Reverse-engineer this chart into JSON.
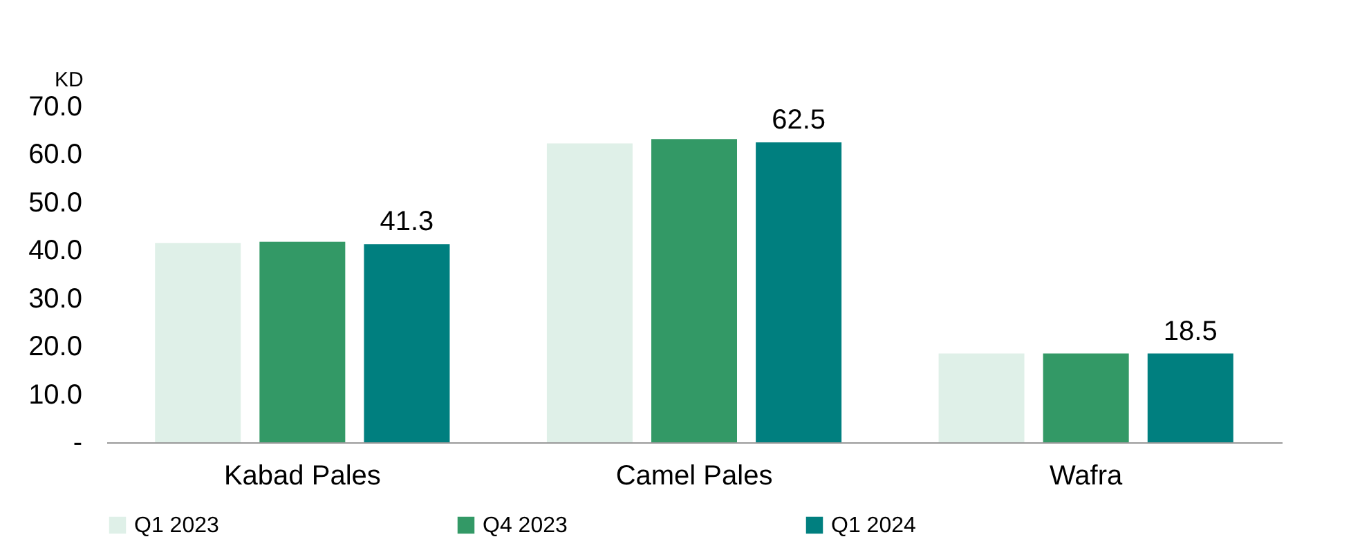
{
  "chart_data": {
    "type": "bar",
    "ylabel": "KD",
    "categories": [
      "Kabad Pales",
      "Camel Pales",
      "Wafra"
    ],
    "series": [
      {
        "name": "Q1 2023",
        "color": "#dff0e8",
        "values": [
          41.5,
          62.3,
          18.5
        ]
      },
      {
        "name": "Q4 2023",
        "color": "#339966",
        "values": [
          41.8,
          63.2,
          18.5
        ]
      },
      {
        "name": "Q1 2024",
        "color": "#007f7f",
        "values": [
          41.3,
          62.5,
          18.5
        ],
        "value_labels": [
          "41.3",
          "62.5",
          "18.5"
        ]
      }
    ],
    "ylim": [
      0,
      70
    ],
    "yticks": [
      {
        "value": 0,
        "label": "-"
      },
      {
        "value": 10,
        "label": "10.0"
      },
      {
        "value": 20,
        "label": "20.0"
      },
      {
        "value": 30,
        "label": "30.0"
      },
      {
        "value": 40,
        "label": "40.0"
      },
      {
        "value": 50,
        "label": "50.0"
      },
      {
        "value": 60,
        "label": "60.0"
      },
      {
        "value": 70,
        "label": "70.0"
      }
    ],
    "grid": false,
    "legend": "bottom"
  }
}
